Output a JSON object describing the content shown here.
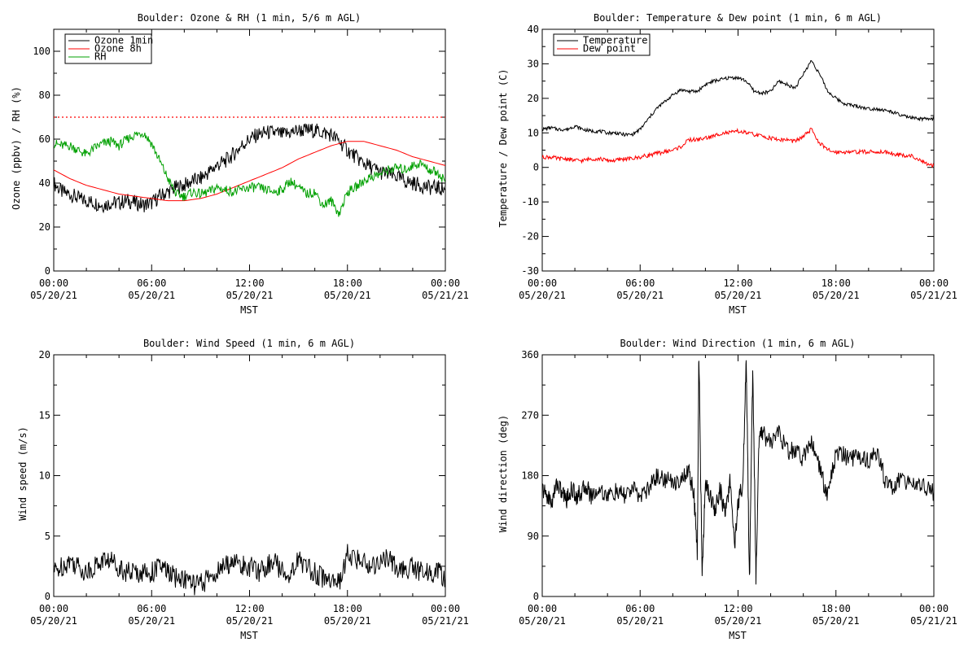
{
  "panels": [
    {
      "title": "Boulder: Ozone & RH (1 min, 5/6 m AGL)",
      "ylabel": "Ozone (ppbv) / RH (%)",
      "xlabel": "MST",
      "legend": [
        {
          "label": "Ozone 1min",
          "color": "#000000"
        },
        {
          "label": "Ozone 8h",
          "color": "#ff0000"
        },
        {
          "label": "RH",
          "color": "#00a000"
        }
      ]
    },
    {
      "title": "Boulder: Temperature & Dew point (1 min, 6 m AGL)",
      "ylabel": "Temperature / Dew point (C)",
      "xlabel": "MST",
      "legend": [
        {
          "label": "Temperature",
          "color": "#000000"
        },
        {
          "label": "Dew point",
          "color": "#ff0000"
        }
      ]
    },
    {
      "title": "Boulder: Wind Speed (1 min, 6 m AGL)",
      "ylabel": "Wind speed (m/s)",
      "xlabel": "MST",
      "legend": []
    },
    {
      "title": "Boulder: Wind Direction (1 min, 6 m AGL)",
      "ylabel": "Wind direction (deg)",
      "xlabel": "MST",
      "legend": []
    }
  ],
  "chart_data": [
    {
      "type": "line",
      "title": "Boulder: Ozone & RH (1 min, 5/6 m AGL)",
      "xlabel": "MST",
      "ylabel": "Ozone (ppbv) / RH (%)",
      "xlim": [
        0,
        24
      ],
      "ylim": [
        0,
        110
      ],
      "xticks": [
        0,
        6,
        12,
        18,
        24
      ],
      "xtick_labels": [
        [
          "00:00",
          "05/20/21"
        ],
        [
          "06:00",
          "05/20/21"
        ],
        [
          "12:00",
          "05/20/21"
        ],
        [
          "18:00",
          "05/20/21"
        ],
        [
          "00:00",
          "05/21/21"
        ]
      ],
      "yticks": [
        0,
        20,
        40,
        60,
        80,
        100
      ],
      "legend_position": "top-left",
      "hline": {
        "y": 70,
        "color": "#ff0000",
        "style": "dotted"
      },
      "series": [
        {
          "name": "Ozone 1min",
          "color": "#000000",
          "x": [
            0,
            0.5,
            1,
            1.5,
            2,
            2.5,
            3,
            3.5,
            4,
            4.5,
            5,
            5.5,
            6,
            6.5,
            7,
            7.5,
            8,
            8.5,
            9,
            9.5,
            10,
            10.5,
            11,
            11.5,
            12,
            12.5,
            13,
            13.5,
            14,
            14.5,
            15,
            15.5,
            16,
            16.5,
            17,
            17.5,
            18,
            18.5,
            19,
            19.5,
            20,
            20.5,
            21,
            21.5,
            22,
            22.5,
            23,
            23.5,
            24
          ],
          "y": [
            40,
            36,
            35,
            33,
            32,
            31,
            30,
            31,
            31,
            32,
            31,
            30,
            31,
            34,
            36,
            38,
            39,
            41,
            42,
            45,
            48,
            50,
            53,
            57,
            60,
            62,
            63,
            63,
            62,
            63,
            64,
            64,
            64,
            63,
            62,
            59,
            55,
            52,
            49,
            47,
            45,
            44,
            43,
            41,
            40,
            39,
            38,
            38,
            37
          ]
        },
        {
          "name": "Ozone 8h",
          "color": "#ff0000",
          "x": [
            0,
            1,
            2,
            3,
            4,
            5,
            6,
            7,
            8,
            9,
            10,
            11,
            12,
            13,
            14,
            15,
            16,
            17,
            18,
            19,
            20,
            21,
            22,
            23,
            24
          ],
          "y": [
            46,
            42,
            39,
            37,
            35,
            34,
            33,
            32,
            32,
            33,
            35,
            38,
            41,
            44,
            47,
            51,
            54,
            57,
            59,
            59,
            57,
            55,
            52,
            50,
            48
          ]
        },
        {
          "name": "RH",
          "color": "#00a000",
          "x": [
            0,
            0.5,
            1,
            1.5,
            2,
            2.5,
            3,
            3.5,
            4,
            4.5,
            5,
            5.5,
            6,
            6.5,
            7,
            7.5,
            8,
            8.5,
            9,
            9.5,
            10,
            10.5,
            11,
            11.5,
            12,
            12.5,
            13,
            13.5,
            14,
            14.5,
            15,
            15.5,
            16,
            16.5,
            17,
            17.5,
            18,
            18.5,
            19,
            19.5,
            20,
            20.5,
            21,
            21.5,
            22,
            22.5,
            23,
            23.5,
            24
          ],
          "y": [
            58,
            57,
            57,
            55,
            53,
            56,
            58,
            59,
            57,
            60,
            62,
            63,
            58,
            50,
            42,
            35,
            34,
            36,
            35,
            36,
            38,
            37,
            36,
            37,
            38,
            38,
            37,
            36,
            37,
            41,
            38,
            35,
            36,
            30,
            32,
            26,
            36,
            38,
            41,
            43,
            44,
            46,
            47,
            46,
            48,
            49,
            46,
            45,
            41
          ]
        }
      ]
    },
    {
      "type": "line",
      "title": "Boulder: Temperature & Dew point (1 min, 6 m AGL)",
      "xlabel": "MST",
      "ylabel": "Temperature / Dew point (C)",
      "xlim": [
        0,
        24
      ],
      "ylim": [
        -30,
        40
      ],
      "xticks": [
        0,
        6,
        12,
        18,
        24
      ],
      "xtick_labels": [
        [
          "00:00",
          "05/20/21"
        ],
        [
          "06:00",
          "05/20/21"
        ],
        [
          "12:00",
          "05/20/21"
        ],
        [
          "18:00",
          "05/20/21"
        ],
        [
          "00:00",
          "05/21/21"
        ]
      ],
      "yticks": [
        -30,
        -20,
        -10,
        0,
        10,
        20,
        30,
        40
      ],
      "legend_position": "top-left",
      "series": [
        {
          "name": "Temperature",
          "color": "#000000",
          "x": [
            0,
            0.5,
            1,
            1.5,
            2,
            2.5,
            3,
            3.5,
            4,
            4.5,
            5,
            5.5,
            6,
            6.5,
            7,
            7.5,
            8,
            8.5,
            9,
            9.5,
            10,
            10.5,
            11,
            11.5,
            12,
            12.5,
            13,
            13.5,
            14,
            14.5,
            15,
            15.5,
            16,
            16.5,
            17,
            17.5,
            18,
            18.5,
            19,
            19.5,
            20,
            20.5,
            21,
            21.5,
            22,
            22.5,
            23,
            23.5,
            24
          ],
          "y": [
            11,
            11.5,
            11,
            11,
            12,
            11,
            10.5,
            10.5,
            10,
            10,
            9.5,
            9.5,
            11,
            14,
            17,
            19,
            21,
            22.5,
            22,
            22,
            24,
            25,
            25.5,
            26,
            26,
            25,
            22,
            21.5,
            22,
            25,
            24,
            23,
            27,
            31,
            27,
            22,
            20,
            18.5,
            18,
            17.5,
            17,
            17,
            16.5,
            16,
            15,
            14.5,
            14,
            14,
            14
          ]
        },
        {
          "name": "Dew point",
          "color": "#ff0000",
          "x": [
            0,
            0.5,
            1,
            1.5,
            2,
            2.5,
            3,
            3.5,
            4,
            4.5,
            5,
            5.5,
            6,
            6.5,
            7,
            7.5,
            8,
            8.5,
            9,
            9.5,
            10,
            10.5,
            11,
            11.5,
            12,
            12.5,
            13,
            13.5,
            14,
            14.5,
            15,
            15.5,
            16,
            16.5,
            17,
            17.5,
            18,
            18.5,
            19,
            19.5,
            20,
            20.5,
            21,
            21.5,
            22,
            22.5,
            23,
            23.5,
            24
          ],
          "y": [
            3,
            3,
            2.5,
            2.5,
            2,
            2,
            2.5,
            2.5,
            2,
            2,
            2.5,
            2.5,
            3,
            3.5,
            4,
            4.5,
            5,
            6,
            8,
            8,
            8.5,
            9,
            10,
            10,
            10.5,
            10,
            9.5,
            9,
            8.5,
            8,
            8,
            7.5,
            9,
            11,
            7,
            5,
            4.5,
            4.5,
            4.5,
            4.5,
            4.5,
            4.5,
            4.5,
            4,
            3.5,
            3.5,
            2.5,
            1,
            0.5
          ]
        }
      ]
    },
    {
      "type": "line",
      "title": "Boulder: Wind Speed (1 min, 6 m AGL)",
      "xlabel": "MST",
      "ylabel": "Wind speed (m/s)",
      "xlim": [
        0,
        24
      ],
      "ylim": [
        0,
        20
      ],
      "xticks": [
        0,
        6,
        12,
        18,
        24
      ],
      "xtick_labels": [
        [
          "00:00",
          "05/20/21"
        ],
        [
          "06:00",
          "05/20/21"
        ],
        [
          "12:00",
          "05/20/21"
        ],
        [
          "18:00",
          "05/20/21"
        ],
        [
          "00:00",
          "05/21/21"
        ]
      ],
      "yticks": [
        0,
        5,
        10,
        15,
        20
      ],
      "series": [
        {
          "color": "#000000",
          "x": [
            0,
            0.5,
            1,
            1.5,
            2,
            2.5,
            3,
            3.5,
            4,
            4.5,
            5,
            5.5,
            6,
            6.5,
            7,
            7.5,
            8,
            8.5,
            9,
            9.5,
            10,
            10.5,
            11,
            11.5,
            12,
            12.5,
            13,
            13.5,
            14,
            14.5,
            15,
            15.5,
            16,
            16.5,
            17,
            17.5,
            18,
            18.5,
            19,
            19.5,
            20,
            20.5,
            21,
            21.5,
            22,
            22.5,
            23,
            23.5,
            24
          ],
          "y": [
            2,
            2.5,
            3,
            2.5,
            2,
            2.5,
            3,
            3,
            2.5,
            2,
            2,
            2,
            2,
            2.5,
            2,
            1.5,
            1.5,
            1,
            1,
            1.5,
            2,
            2.5,
            3,
            2.5,
            2.5,
            2,
            2.5,
            3,
            2,
            2,
            3,
            2.5,
            2,
            1.5,
            1.5,
            1,
            3.5,
            3,
            3,
            2.5,
            3,
            3,
            2.5,
            2,
            2.5,
            2,
            2,
            2,
            1.5
          ]
        }
      ]
    },
    {
      "type": "line",
      "title": "Boulder: Wind Direction (1 min, 6 m AGL)",
      "xlabel": "MST",
      "ylabel": "Wind direction (deg)",
      "xlim": [
        0,
        24
      ],
      "ylim": [
        0,
        360
      ],
      "xticks": [
        0,
        6,
        12,
        18,
        24
      ],
      "xtick_labels": [
        [
          "00:00",
          "05/20/21"
        ],
        [
          "06:00",
          "05/20/21"
        ],
        [
          "12:00",
          "05/20/21"
        ],
        [
          "18:00",
          "05/20/21"
        ],
        [
          "00:00",
          "05/21/21"
        ]
      ],
      "yticks": [
        0,
        90,
        180,
        270,
        360
      ],
      "series": [
        {
          "color": "#000000",
          "x": [
            0,
            0.3,
            0.6,
            0.9,
            1.2,
            1.5,
            1.8,
            2.1,
            2.4,
            2.7,
            3,
            3.5,
            4,
            4.5,
            5,
            5.5,
            6,
            6.5,
            7,
            7.5,
            8,
            8.5,
            9,
            9.3,
            9.5,
            9.6,
            9.8,
            10,
            10.3,
            10.6,
            10.9,
            11.2,
            11.5,
            11.8,
            12,
            12.3,
            12.5,
            12.7,
            12.9,
            13.1,
            13.3,
            13.6,
            14,
            14.5,
            15,
            15.5,
            16,
            16.5,
            17,
            17.5,
            18,
            18.5,
            19,
            19.5,
            20,
            20.5,
            21,
            21.5,
            22,
            22.5,
            23,
            23.5,
            24
          ],
          "y": [
            160,
            150,
            140,
            170,
            155,
            145,
            160,
            150,
            155,
            165,
            150,
            160,
            150,
            155,
            150,
            160,
            150,
            160,
            180,
            175,
            170,
            175,
            185,
            150,
            60,
            360,
            30,
            170,
            150,
            130,
            160,
            120,
            170,
            80,
            140,
            170,
            360,
            20,
            340,
            30,
            250,
            240,
            230,
            245,
            215,
            220,
            205,
            235,
            190,
            150,
            215,
            210,
            205,
            210,
            200,
            215,
            175,
            160,
            180,
            165,
            170,
            160,
            155
          ]
        }
      ]
    }
  ]
}
